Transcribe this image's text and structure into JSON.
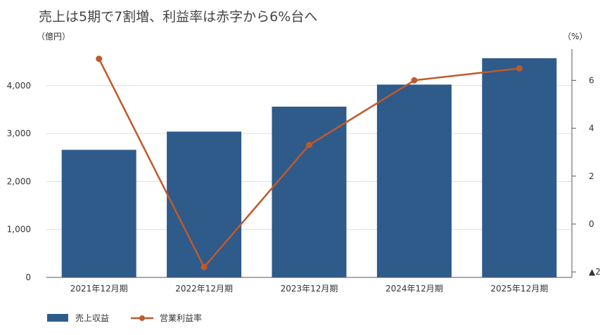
{
  "chart_data": {
    "type": "bar+line",
    "title": "売上は5期で7割増、利益率は赤字から6%台へ",
    "left_unit": "（億円）",
    "right_unit": "（%）",
    "categories": [
      "2021年12月期",
      "2022年12月期",
      "2023年12月期",
      "2024年12月期",
      "2025年12月期"
    ],
    "series": [
      {
        "name": "売上収益",
        "type": "bar",
        "axis": "left",
        "values": [
          2660,
          3040,
          3560,
          4020,
          4570
        ]
      },
      {
        "name": "営業利益率",
        "type": "line",
        "axis": "right",
        "values": [
          6.9,
          -1.8,
          3.3,
          6.0,
          6.5
        ]
      }
    ],
    "left_axis": {
      "ylim": [
        0,
        4700
      ],
      "ticks": [
        0,
        1000,
        2000,
        3000,
        4000
      ],
      "tick_labels": [
        "0",
        "1,000",
        "2,000",
        "3,000",
        "4,000"
      ]
    },
    "right_axis": {
      "ylim": [
        -2,
        8
      ],
      "ticks": [
        -2,
        0,
        2,
        4,
        6
      ],
      "tick_labels": [
        "▲2",
        "0",
        "2",
        "4",
        "6"
      ]
    },
    "grid": true,
    "legend_position": "bottom-left",
    "colors": {
      "bar": "#2e5b8a",
      "line": "#c0592b",
      "grid": "#dddddd",
      "axis": "#555555"
    }
  }
}
